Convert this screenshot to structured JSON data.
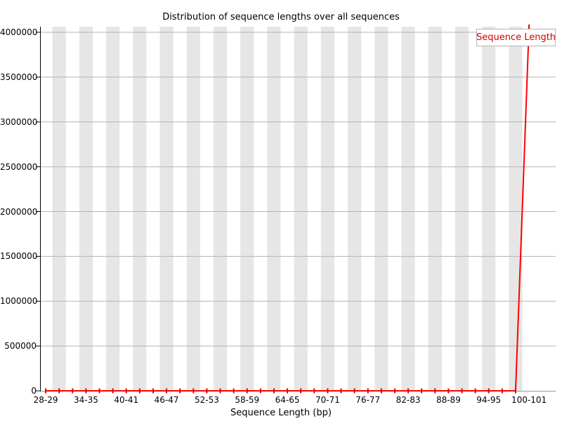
{
  "chart_data": {
    "type": "line",
    "title": "Distribution of sequence lengths over all sequences",
    "xlabel": "Sequence Length (bp)",
    "ylabel": "",
    "legend": {
      "label": "Sequence Length",
      "position": "top-right"
    },
    "grid": "horizontal",
    "ylim": [
      0,
      4063000
    ],
    "y_ticks": [
      0,
      500000,
      1000000,
      1500000,
      2000000,
      2500000,
      3000000,
      3500000,
      4000000
    ],
    "x_tick_labels": [
      "28-29",
      "34-35",
      "40-41",
      "46-47",
      "52-53",
      "58-59",
      "64-65",
      "70-71",
      "76-77",
      "82-83",
      "88-89",
      "94-95",
      "100-101"
    ],
    "bins": [
      "28-29",
      "30-31",
      "32-33",
      "34-35",
      "36-37",
      "38-39",
      "40-41",
      "42-43",
      "44-45",
      "46-47",
      "48-49",
      "50-51",
      "52-53",
      "54-55",
      "56-57",
      "58-59",
      "60-61",
      "62-63",
      "64-65",
      "66-67",
      "68-69",
      "70-71",
      "72-73",
      "74-75",
      "76-77",
      "78-79",
      "80-81",
      "82-83",
      "84-85",
      "86-87",
      "88-89",
      "90-91",
      "92-93",
      "94-95",
      "96-97",
      "98-99",
      "100-101"
    ],
    "series": [
      {
        "name": "Sequence Length",
        "values": [
          0,
          0,
          0,
          0,
          0,
          0,
          0,
          0,
          0,
          0,
          0,
          0,
          0,
          0,
          0,
          0,
          0,
          0,
          0,
          0,
          0,
          0,
          0,
          0,
          0,
          0,
          0,
          0,
          0,
          0,
          0,
          0,
          0,
          0,
          0,
          0,
          4060000
        ]
      }
    ],
    "colors": {
      "line": "#ff0000",
      "marker": "#e00000",
      "stripe": "#e6e6e6",
      "grid": "#b3b3b3",
      "x_axis_line": "#999999",
      "y_axis_line": "#000000",
      "legend_border": "#b4b4b4",
      "legend_text": "#d40000",
      "text": "#000000",
      "background": "#ffffff"
    }
  }
}
